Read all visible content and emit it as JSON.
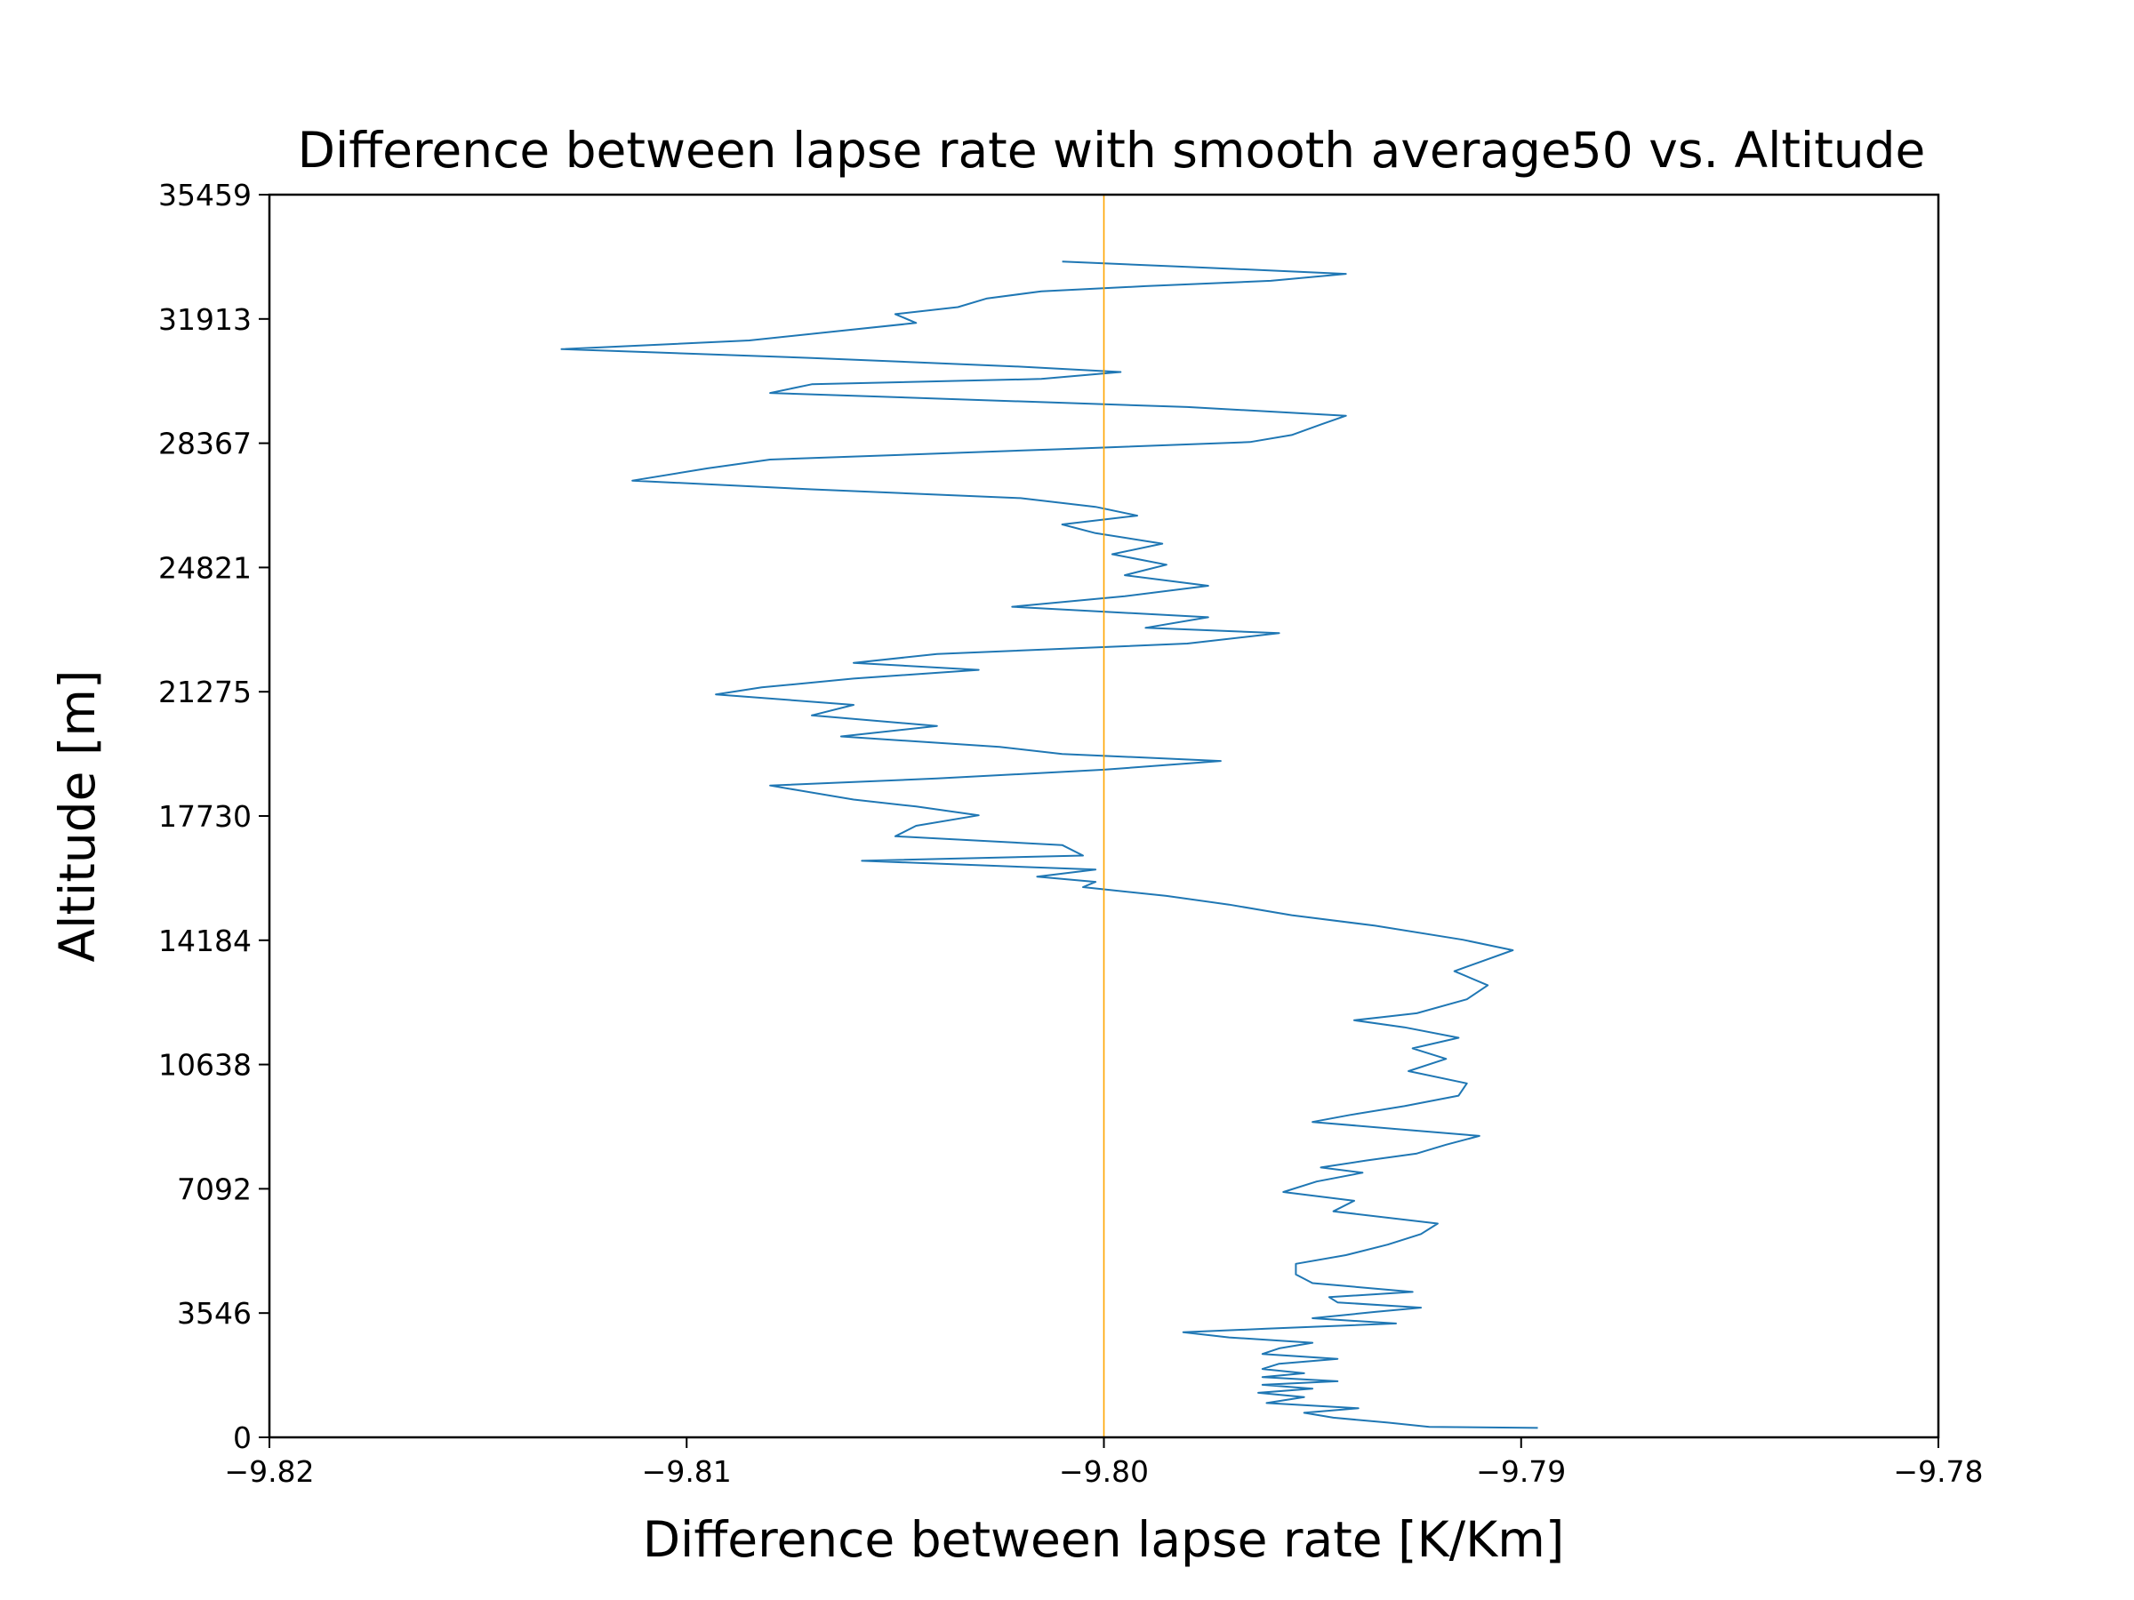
{
  "chart_data": {
    "type": "line",
    "title": "Difference between lapse rate with smooth average50 vs. Altitude",
    "xlabel": "Difference between lapse rate [K/Km]",
    "ylabel": "Altitude [m]",
    "xlim": [
      -9.82,
      -9.78
    ],
    "ylim": [
      0,
      35459
    ],
    "xticks": [
      -9.82,
      -9.81,
      -9.8,
      -9.79,
      -9.78
    ],
    "xtick_labels": [
      "−9.82",
      "−9.81",
      "−9.80",
      "−9.79",
      "−9.78"
    ],
    "yticks": [
      0,
      3546,
      7092,
      10638,
      14184,
      17730,
      21275,
      24821,
      28367,
      31913,
      35459
    ],
    "ytick_labels": [
      "0",
      "3546",
      "7092",
      "10638",
      "14184",
      "17730",
      "21275",
      "24821",
      "28367",
      "31913",
      "35459"
    ],
    "grid": false,
    "series": [
      {
        "color": "#1f77b4",
        "points": [
          [
            -9.7896,
            270
          ],
          [
            -9.7922,
            300
          ],
          [
            -9.7932,
            420
          ],
          [
            -9.7945,
            560
          ],
          [
            -9.7952,
            700
          ],
          [
            -9.7939,
            830
          ],
          [
            -9.7961,
            980
          ],
          [
            -9.7952,
            1150
          ],
          [
            -9.7963,
            1270
          ],
          [
            -9.795,
            1390
          ],
          [
            -9.7962,
            1500
          ],
          [
            -9.7944,
            1600
          ],
          [
            -9.7962,
            1720
          ],
          [
            -9.7952,
            1830
          ],
          [
            -9.7962,
            1950
          ],
          [
            -9.7958,
            2100
          ],
          [
            -9.7944,
            2240
          ],
          [
            -9.7962,
            2380
          ],
          [
            -9.7958,
            2540
          ],
          [
            -9.795,
            2700
          ],
          [
            -9.797,
            2850
          ],
          [
            -9.7981,
            3000
          ],
          [
            -9.7961,
            3100
          ],
          [
            -9.793,
            3250
          ],
          [
            -9.795,
            3400
          ],
          [
            -9.7935,
            3580
          ],
          [
            -9.7924,
            3700
          ],
          [
            -9.7944,
            3850
          ],
          [
            -9.7946,
            4000
          ],
          [
            -9.7926,
            4150
          ],
          [
            -9.795,
            4400
          ],
          [
            -9.7954,
            4650
          ],
          [
            -9.7954,
            4950
          ],
          [
            -9.7942,
            5200
          ],
          [
            -9.7932,
            5500
          ],
          [
            -9.7924,
            5800
          ],
          [
            -9.792,
            6100
          ],
          [
            -9.7945,
            6450
          ],
          [
            -9.794,
            6750
          ],
          [
            -9.7957,
            7000
          ],
          [
            -9.7949,
            7300
          ],
          [
            -9.7938,
            7550
          ],
          [
            -9.7948,
            7700
          ],
          [
            -9.7937,
            7900
          ],
          [
            -9.7925,
            8100
          ],
          [
            -9.7918,
            8350
          ],
          [
            -9.791,
            8600
          ],
          [
            -9.793,
            8800
          ],
          [
            -9.795,
            9000
          ],
          [
            -9.7941,
            9200
          ],
          [
            -9.7928,
            9450
          ],
          [
            -9.7915,
            9750
          ],
          [
            -9.7913,
            10100
          ],
          [
            -9.7927,
            10450
          ],
          [
            -9.7918,
            10800
          ],
          [
            -9.7926,
            11100
          ],
          [
            -9.7915,
            11400
          ],
          [
            -9.7928,
            11700
          ],
          [
            -9.794,
            11900
          ],
          [
            -9.7925,
            12100
          ],
          [
            -9.7913,
            12500
          ],
          [
            -9.7908,
            12900
          ],
          [
            -9.7916,
            13300
          ],
          [
            -9.7909,
            13600
          ],
          [
            -9.7902,
            13900
          ],
          [
            -9.7914,
            14200
          ],
          [
            -9.7935,
            14600
          ],
          [
            -9.7955,
            14900
          ],
          [
            -9.797,
            15200
          ],
          [
            -9.7985,
            15450
          ],
          [
            -9.8005,
            15700
          ],
          [
            -9.8002,
            15850
          ],
          [
            -9.8016,
            16000
          ],
          [
            -9.8002,
            16200
          ],
          [
            -9.8058,
            16450
          ],
          [
            -9.8005,
            16600
          ],
          [
            -9.801,
            16900
          ],
          [
            -9.805,
            17150
          ],
          [
            -9.8045,
            17450
          ],
          [
            -9.803,
            17750
          ],
          [
            -9.8045,
            18000
          ],
          [
            -9.806,
            18200
          ],
          [
            -9.808,
            18600
          ],
          [
            -9.804,
            18800
          ],
          [
            -9.8,
            19050
          ],
          [
            -9.7972,
            19300
          ],
          [
            -9.801,
            19500
          ],
          [
            -9.8025,
            19700
          ],
          [
            -9.8063,
            20000
          ],
          [
            -9.804,
            20300
          ],
          [
            -9.807,
            20600
          ],
          [
            -9.806,
            20900
          ],
          [
            -9.8093,
            21200
          ],
          [
            -9.8082,
            21400
          ],
          [
            -9.806,
            21650
          ],
          [
            -9.803,
            21900
          ],
          [
            -9.806,
            22100
          ],
          [
            -9.804,
            22350
          ],
          [
            -9.798,
            22650
          ],
          [
            -9.7958,
            22950
          ],
          [
            -9.799,
            23100
          ],
          [
            -9.7975,
            23400
          ],
          [
            -9.8022,
            23700
          ],
          [
            -9.7995,
            24000
          ],
          [
            -9.7975,
            24300
          ],
          [
            -9.7995,
            24600
          ],
          [
            -9.7985,
            24900
          ],
          [
            -9.7998,
            25200
          ],
          [
            -9.7986,
            25500
          ],
          [
            -9.8002,
            25800
          ],
          [
            -9.801,
            26050
          ],
          [
            -9.7992,
            26300
          ],
          [
            -9.8002,
            26550
          ],
          [
            -9.802,
            26800
          ],
          [
            -9.807,
            27050
          ],
          [
            -9.8113,
            27300
          ],
          [
            -9.8095,
            27650
          ],
          [
            -9.808,
            27900
          ],
          [
            -9.801,
            28200
          ],
          [
            -9.7965,
            28400
          ],
          [
            -9.7955,
            28600
          ],
          [
            -9.7948,
            28900
          ],
          [
            -9.7942,
            29150
          ],
          [
            -9.798,
            29400
          ],
          [
            -9.808,
            29800
          ],
          [
            -9.807,
            30050
          ],
          [
            -9.8015,
            30200
          ],
          [
            -9.7996,
            30400
          ],
          [
            -9.802,
            30550
          ],
          [
            -9.807,
            30800
          ],
          [
            -9.813,
            31050
          ],
          [
            -9.8085,
            31300
          ],
          [
            -9.8065,
            31550
          ],
          [
            -9.8045,
            31800
          ],
          [
            -9.805,
            32050
          ],
          [
            -9.8035,
            32250
          ],
          [
            -9.8028,
            32500
          ],
          [
            -9.8015,
            32700
          ],
          [
            -9.799,
            32850
          ],
          [
            -9.796,
            33000
          ],
          [
            -9.7942,
            33200
          ],
          [
            -9.798,
            33400
          ],
          [
            -9.801,
            33550
          ]
        ]
      },
      {
        "color": "#ffa500",
        "points": [
          [
            -9.8,
            0
          ],
          [
            -9.8,
            35459
          ]
        ]
      }
    ]
  }
}
